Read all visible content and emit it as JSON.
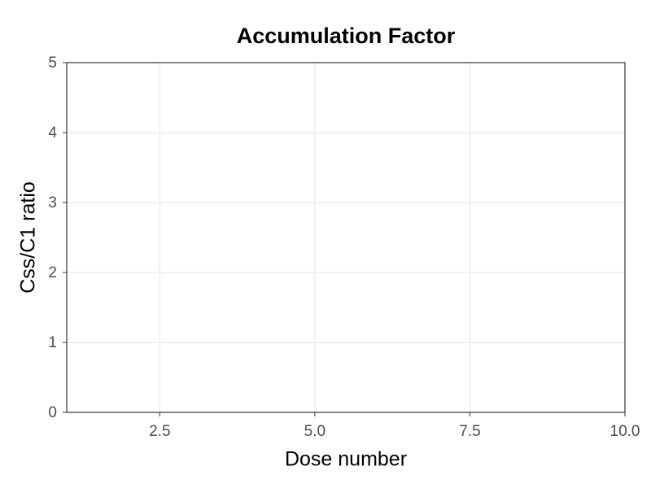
{
  "chart_data": {
    "type": "line",
    "title": "Accumulation Factor",
    "x_label": "Dose number",
    "y_label": "Css/C1 ratio",
    "series": [],
    "xlim": [
      1,
      10
    ],
    "xticks": [
      2.5,
      {
        "value": 5,
        "label": "5.0"
      },
      7.5,
      {
        "value": 10,
        "label": "10.0"
      }
    ],
    "ylim": [
      0,
      5
    ],
    "yticks": [
      0,
      1,
      2,
      3,
      4,
      5
    ],
    "grid": true
  }
}
